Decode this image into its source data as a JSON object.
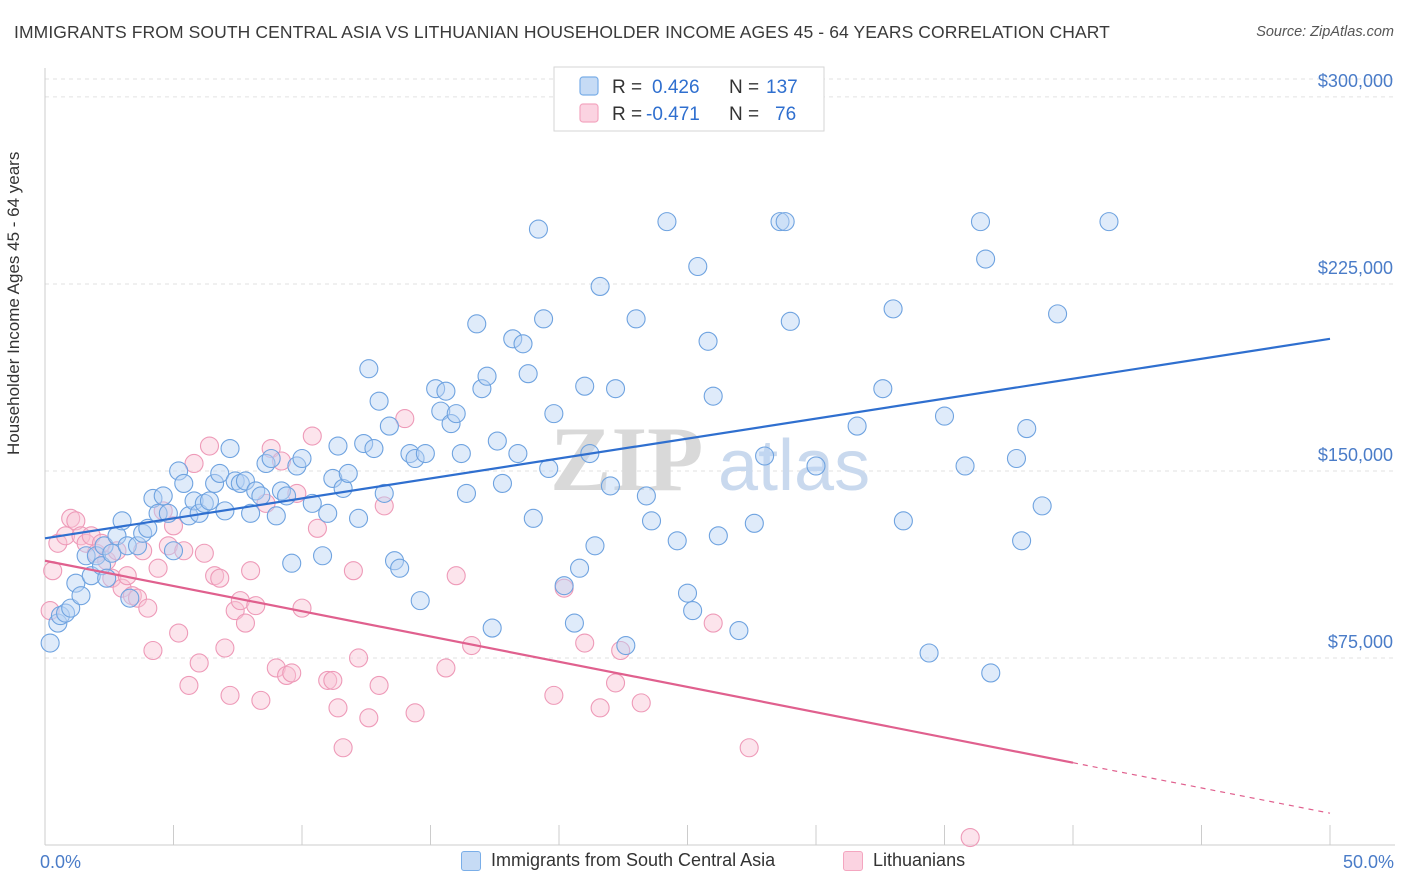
{
  "title": "IMMIGRANTS FROM SOUTH CENTRAL ASIA VS LITHUANIAN HOUSEHOLDER INCOME AGES 45 - 64 YEARS CORRELATION CHART",
  "source": "Source: ZipAtlas.com",
  "watermark": {
    "zip": "ZIP",
    "atlas": "atlas"
  },
  "colors": {
    "blue": "#7aaee8",
    "blue_line": "#2f6fcf",
    "pink": "#f4a6c0",
    "pink_line": "#e0608e",
    "axis_text": "#4a7cc8"
  },
  "legend": {
    "items": [
      {
        "r_label": "R =",
        "r_value": "0.426",
        "n_label": "N =",
        "n_value": "137"
      },
      {
        "r_label": "R =",
        "r_value": "-0.471",
        "n_label": "N =",
        "n_value": "76"
      }
    ]
  },
  "chart_data": {
    "type": "scatter",
    "title": "IMMIGRANTS FROM SOUTH CENTRAL ASIA VS LITHUANIAN HOUSEHOLDER INCOME AGES 45 - 64 YEARS CORRELATION CHART",
    "xlabel": "",
    "ylabel": "Householder Income Ages 45 - 64 years",
    "xlim": [
      0,
      50
    ],
    "ylim": [
      0,
      310000
    ],
    "x_tick_labels": [
      "0.0%",
      "50.0%"
    ],
    "y_ticks": [
      75000,
      150000,
      225000,
      300000
    ],
    "y_tick_labels": [
      "$75,000",
      "$150,000",
      "$225,000",
      "$300,000"
    ],
    "grid": true,
    "legend_position": "top-center",
    "series": [
      {
        "name": "Immigrants from South Central Asia",
        "color": "#7aaee8",
        "trend": {
          "x": [
            0,
            50
          ],
          "y": [
            123000,
            203000
          ]
        },
        "points": [
          [
            0.2,
            81000
          ],
          [
            0.5,
            89000
          ],
          [
            0.6,
            92000
          ],
          [
            0.8,
            93000
          ],
          [
            1.0,
            95000
          ],
          [
            1.2,
            105000
          ],
          [
            1.4,
            100000
          ],
          [
            1.6,
            116000
          ],
          [
            1.8,
            108000
          ],
          [
            2.0,
            116000
          ],
          [
            2.2,
            112000
          ],
          [
            2.3,
            120000
          ],
          [
            2.4,
            107000
          ],
          [
            2.6,
            117000
          ],
          [
            2.8,
            124000
          ],
          [
            3.0,
            130000
          ],
          [
            3.2,
            120000
          ],
          [
            3.3,
            99000
          ],
          [
            3.6,
            120000
          ],
          [
            3.8,
            125000
          ],
          [
            4.0,
            127000
          ],
          [
            4.2,
            139000
          ],
          [
            4.4,
            133000
          ],
          [
            4.6,
            140000
          ],
          [
            4.8,
            133000
          ],
          [
            5.0,
            118000
          ],
          [
            5.2,
            150000
          ],
          [
            5.4,
            145000
          ],
          [
            5.6,
            132000
          ],
          [
            5.8,
            138000
          ],
          [
            6.0,
            133000
          ],
          [
            6.2,
            137000
          ],
          [
            6.4,
            138000
          ],
          [
            6.6,
            145000
          ],
          [
            6.8,
            149000
          ],
          [
            7.0,
            134000
          ],
          [
            7.2,
            159000
          ],
          [
            7.4,
            146000
          ],
          [
            7.6,
            145000
          ],
          [
            7.8,
            146000
          ],
          [
            8.0,
            133000
          ],
          [
            8.2,
            142000
          ],
          [
            8.4,
            140000
          ],
          [
            8.6,
            153000
          ],
          [
            8.8,
            155000
          ],
          [
            9.0,
            132000
          ],
          [
            9.2,
            142000
          ],
          [
            9.4,
            140000
          ],
          [
            9.6,
            113000
          ],
          [
            9.8,
            152000
          ],
          [
            10.0,
            155000
          ],
          [
            10.4,
            137000
          ],
          [
            10.8,
            116000
          ],
          [
            11.0,
            133000
          ],
          [
            11.2,
            147000
          ],
          [
            11.4,
            160000
          ],
          [
            11.6,
            143000
          ],
          [
            11.8,
            149000
          ],
          [
            12.2,
            131000
          ],
          [
            12.4,
            161000
          ],
          [
            12.6,
            191000
          ],
          [
            12.8,
            159000
          ],
          [
            13.0,
            178000
          ],
          [
            13.2,
            141000
          ],
          [
            13.4,
            168000
          ],
          [
            13.6,
            114000
          ],
          [
            13.8,
            111000
          ],
          [
            14.2,
            157000
          ],
          [
            14.4,
            155000
          ],
          [
            14.6,
            98000
          ],
          [
            14.8,
            157000
          ],
          [
            15.2,
            183000
          ],
          [
            15.4,
            174000
          ],
          [
            15.6,
            182000
          ],
          [
            15.8,
            169000
          ],
          [
            16.0,
            173000
          ],
          [
            16.2,
            157000
          ],
          [
            16.4,
            141000
          ],
          [
            16.8,
            209000
          ],
          [
            17.0,
            183000
          ],
          [
            17.2,
            188000
          ],
          [
            17.4,
            87000
          ],
          [
            17.6,
            162000
          ],
          [
            17.8,
            145000
          ],
          [
            18.2,
            203000
          ],
          [
            18.4,
            157000
          ],
          [
            18.6,
            201000
          ],
          [
            18.8,
            189000
          ],
          [
            19.0,
            131000
          ],
          [
            19.2,
            247000
          ],
          [
            19.4,
            211000
          ],
          [
            19.6,
            151000
          ],
          [
            19.8,
            173000
          ],
          [
            20.2,
            104000
          ],
          [
            20.6,
            89000
          ],
          [
            20.8,
            111000
          ],
          [
            21.0,
            184000
          ],
          [
            21.2,
            157000
          ],
          [
            21.4,
            120000
          ],
          [
            21.6,
            224000
          ],
          [
            22.0,
            144000
          ],
          [
            22.2,
            183000
          ],
          [
            22.6,
            80000
          ],
          [
            23.0,
            211000
          ],
          [
            23.4,
            140000
          ],
          [
            23.6,
            130000
          ],
          [
            24.2,
            250000
          ],
          [
            24.6,
            122000
          ],
          [
            25.0,
            101000
          ],
          [
            25.2,
            94000
          ],
          [
            25.4,
            232000
          ],
          [
            25.8,
            202000
          ],
          [
            26.0,
            180000
          ],
          [
            26.2,
            124000
          ],
          [
            27.0,
            86000
          ],
          [
            27.6,
            129000
          ],
          [
            28.0,
            156000
          ],
          [
            28.6,
            250000
          ],
          [
            28.8,
            250000
          ],
          [
            29.0,
            210000
          ],
          [
            30.0,
            152000
          ],
          [
            31.6,
            168000
          ],
          [
            32.6,
            183000
          ],
          [
            33.0,
            215000
          ],
          [
            33.4,
            130000
          ],
          [
            34.4,
            77000
          ],
          [
            35.0,
            172000
          ],
          [
            35.8,
            152000
          ],
          [
            36.4,
            250000
          ],
          [
            36.6,
            235000
          ],
          [
            36.8,
            69000
          ],
          [
            37.8,
            155000
          ],
          [
            38.0,
            122000
          ],
          [
            38.2,
            167000
          ],
          [
            38.8,
            136000
          ],
          [
            39.4,
            213000
          ],
          [
            41.4,
            250000
          ]
        ]
      },
      {
        "name": "Lithuanians",
        "color": "#f4a6c0",
        "trend": {
          "x": [
            0,
            40
          ],
          "y": [
            114000,
            33000
          ]
        },
        "points": [
          [
            0.2,
            94000
          ],
          [
            0.3,
            110000
          ],
          [
            0.5,
            121000
          ],
          [
            0.8,
            124000
          ],
          [
            1.0,
            131000
          ],
          [
            1.2,
            130000
          ],
          [
            1.4,
            124000
          ],
          [
            1.6,
            121000
          ],
          [
            1.8,
            124000
          ],
          [
            2.0,
            117000
          ],
          [
            2.2,
            121000
          ],
          [
            2.4,
            114000
          ],
          [
            2.6,
            107000
          ],
          [
            2.8,
            118000
          ],
          [
            3.0,
            103000
          ],
          [
            3.2,
            108000
          ],
          [
            3.4,
            100000
          ],
          [
            3.6,
            99000
          ],
          [
            3.8,
            118000
          ],
          [
            4.0,
            95000
          ],
          [
            4.2,
            78000
          ],
          [
            4.4,
            111000
          ],
          [
            4.6,
            134000
          ],
          [
            4.8,
            120000
          ],
          [
            5.0,
            128000
          ],
          [
            5.2,
            85000
          ],
          [
            5.4,
            118000
          ],
          [
            5.6,
            64000
          ],
          [
            5.8,
            153000
          ],
          [
            6.0,
            73000
          ],
          [
            6.2,
            117000
          ],
          [
            6.4,
            160000
          ],
          [
            6.6,
            108000
          ],
          [
            6.8,
            107000
          ],
          [
            7.0,
            79000
          ],
          [
            7.2,
            60000
          ],
          [
            7.4,
            94000
          ],
          [
            7.6,
            98000
          ],
          [
            7.8,
            89000
          ],
          [
            8.0,
            110000
          ],
          [
            8.2,
            96000
          ],
          [
            8.4,
            58000
          ],
          [
            8.6,
            137000
          ],
          [
            8.8,
            159000
          ],
          [
            9.0,
            71000
          ],
          [
            9.2,
            154000
          ],
          [
            9.4,
            68000
          ],
          [
            9.6,
            69000
          ],
          [
            9.8,
            141000
          ],
          [
            10.0,
            95000
          ],
          [
            10.4,
            164000
          ],
          [
            10.6,
            127000
          ],
          [
            11.0,
            66000
          ],
          [
            11.2,
            66000
          ],
          [
            11.4,
            55000
          ],
          [
            11.6,
            39000
          ],
          [
            12.0,
            110000
          ],
          [
            12.2,
            75000
          ],
          [
            12.6,
            51000
          ],
          [
            13.0,
            64000
          ],
          [
            13.2,
            136000
          ],
          [
            14.0,
            171000
          ],
          [
            14.4,
            53000
          ],
          [
            15.6,
            71000
          ],
          [
            16.0,
            108000
          ],
          [
            16.6,
            80000
          ],
          [
            19.8,
            60000
          ],
          [
            20.2,
            103000
          ],
          [
            21.0,
            81000
          ],
          [
            21.6,
            55000
          ],
          [
            22.2,
            65000
          ],
          [
            22.4,
            78000
          ],
          [
            23.2,
            57000
          ],
          [
            26.0,
            89000
          ],
          [
            27.4,
            39000
          ],
          [
            36.0,
            3000
          ]
        ]
      }
    ]
  },
  "bottom_legend": [
    "Immigrants from South Central Asia",
    "Lithuanians"
  ],
  "x_axis": {
    "left_label": "0.0%",
    "right_label": "50.0%"
  }
}
